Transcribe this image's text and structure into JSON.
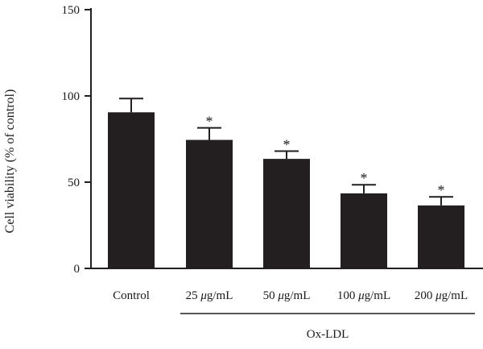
{
  "chart_data": {
    "type": "bar",
    "ylabel": "Cell viability (% of control)",
    "ylim": [
      0,
      150
    ],
    "yticks": [
      0,
      50,
      100,
      150
    ],
    "categories": [
      "Control",
      "25 μg/mL",
      "50 μg/mL",
      "100 μg/mL",
      "200 μg/mL"
    ],
    "values": [
      90.5,
      74.5,
      63.5,
      43.5,
      36.5
    ],
    "errors": [
      8,
      7,
      4.5,
      5,
      5
    ],
    "significance": [
      "",
      "*",
      "*",
      "*",
      "*"
    ],
    "group": {
      "label": "Ox-LDL",
      "from_index": 1,
      "to_index": 4
    },
    "colors": {
      "bar": "#231f20",
      "axis": "#231f20"
    }
  }
}
